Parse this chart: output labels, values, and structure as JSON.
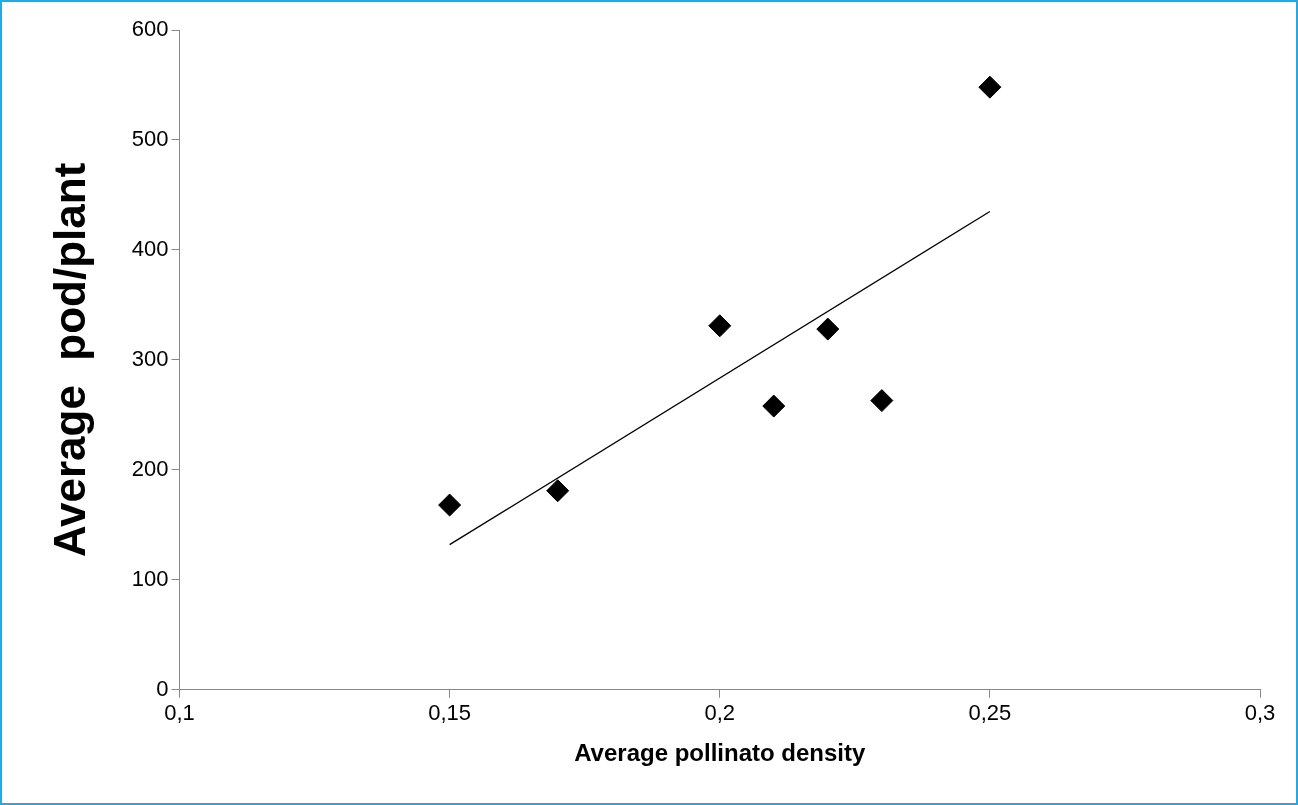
{
  "chart_data": {
    "type": "scatter",
    "xlabel": "Average pollinato density",
    "ylabel": "Average  pod/plant",
    "series": [
      {
        "type": "scatter",
        "color": "#000000",
        "marker": "diamond",
        "x": [
          0.15,
          0.17,
          0.2,
          0.21,
          0.22,
          0.23,
          0.25
        ],
        "values": [
          168,
          181,
          331,
          258,
          328,
          263,
          548
        ]
      },
      {
        "type": "line",
        "color": "#000000",
        "marker": "none",
        "line_style": "solid",
        "x": [
          0.15,
          0.25
        ],
        "values": [
          132,
          435
        ]
      }
    ],
    "xlim": [
      0.1,
      0.3
    ],
    "xticks": [
      {
        "value": 0.1,
        "label": "0,1"
      },
      {
        "value": 0.15,
        "label": "0,15"
      },
      {
        "value": 0.2,
        "label": "0,2"
      },
      {
        "value": 0.25,
        "label": "0,25"
      },
      {
        "value": 0.3,
        "label": "0,3"
      }
    ],
    "ylim": [
      0,
      600
    ],
    "yticks": [
      0,
      100,
      200,
      300,
      400,
      500,
      600
    ],
    "grid": false,
    "legend": false
  }
}
